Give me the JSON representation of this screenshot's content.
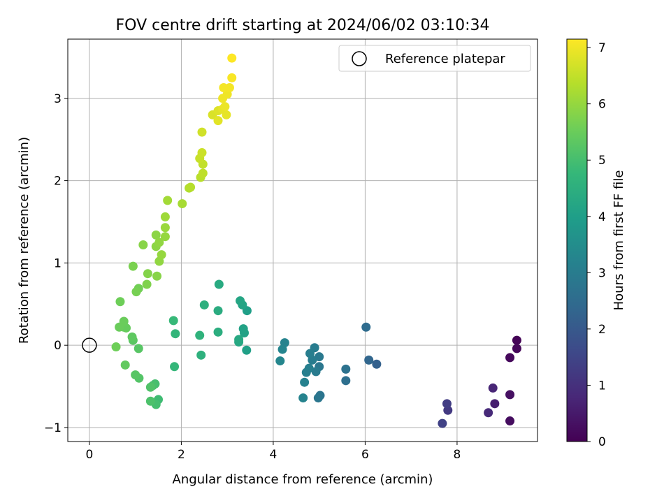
{
  "chart_data": {
    "type": "scatter",
    "title": "FOV centre drift starting at 2024/06/02 03:10:34",
    "xlabel": "Angular distance from reference (arcmin)",
    "ylabel": "Rotation from reference (arcmin)",
    "xlim": [
      -0.47,
      9.75
    ],
    "ylim": [
      -1.17,
      3.72
    ],
    "xticks": [
      0,
      2,
      4,
      6,
      8
    ],
    "yticks": [
      -1,
      0,
      1,
      2,
      3
    ],
    "xtick_labels": [
      "0",
      "2",
      "4",
      "6",
      "8"
    ],
    "ytick_labels": [
      "−1",
      "0",
      "1",
      "2",
      "3"
    ],
    "grid": true,
    "legend": {
      "placement": "upper right",
      "entries": [
        "Reference platepar"
      ]
    },
    "reference_point": {
      "x": 0,
      "y": 0
    },
    "colorbar": {
      "label": "Hours from first FF file",
      "range": [
        0,
        7.15
      ],
      "ticks": [
        0,
        1,
        2,
        3,
        4,
        5,
        6,
        7
      ],
      "tick_labels": [
        "0",
        "1",
        "2",
        "3",
        "4",
        "5",
        "6",
        "7"
      ],
      "colormap": "viridis"
    },
    "points": [
      [
        9.3,
        0.06,
        0.05
      ],
      [
        9.3,
        -0.04,
        0.1
      ],
      [
        9.15,
        -0.15,
        0.15
      ],
      [
        9.15,
        -0.6,
        0.3
      ],
      [
        9.15,
        -0.92,
        0.25
      ],
      [
        8.82,
        -0.71,
        0.6
      ],
      [
        8.78,
        -0.52,
        0.75
      ],
      [
        8.68,
        -0.82,
        0.85
      ],
      [
        7.8,
        -0.79,
        1.2
      ],
      [
        7.78,
        -0.71,
        1.3
      ],
      [
        7.68,
        -0.95,
        1.4
      ],
      [
        6.25,
        -0.23,
        2.2
      ],
      [
        6.08,
        -0.18,
        2.35
      ],
      [
        6.02,
        0.22,
        2.5
      ],
      [
        5.58,
        -0.43,
        2.6
      ],
      [
        5.58,
        -0.29,
        2.7
      ],
      [
        5.02,
        -0.61,
        2.75
      ],
      [
        4.98,
        -0.64,
        2.8
      ],
      [
        5.0,
        -0.26,
        2.85
      ],
      [
        5.0,
        -0.14,
        2.9
      ],
      [
        4.93,
        -0.32,
        2.95
      ],
      [
        4.9,
        -0.03,
        3.0
      ],
      [
        4.85,
        -0.18,
        3.0
      ],
      [
        4.8,
        -0.1,
        3.05
      ],
      [
        4.78,
        -0.28,
        3.1
      ],
      [
        4.72,
        -0.33,
        3.1
      ],
      [
        4.68,
        -0.45,
        3.15
      ],
      [
        4.65,
        -0.64,
        3.2
      ],
      [
        4.25,
        0.03,
        3.2
      ],
      [
        4.2,
        -0.05,
        3.25
      ],
      [
        4.15,
        -0.19,
        3.3
      ],
      [
        3.43,
        0.42,
        4.0
      ],
      [
        3.42,
        -0.06,
        4.05
      ],
      [
        3.37,
        0.15,
        4.1
      ],
      [
        3.35,
        0.2,
        4.1
      ],
      [
        3.33,
        0.49,
        4.15
      ],
      [
        3.28,
        0.54,
        4.2
      ],
      [
        3.25,
        0.04,
        4.25
      ],
      [
        3.25,
        0.07,
        4.3
      ],
      [
        2.82,
        0.74,
        4.35
      ],
      [
        2.8,
        0.42,
        4.4
      ],
      [
        2.8,
        0.16,
        4.45
      ],
      [
        2.5,
        0.49,
        4.5
      ],
      [
        2.43,
        -0.12,
        4.55
      ],
      [
        2.4,
        0.12,
        4.6
      ],
      [
        1.87,
        0.14,
        4.7
      ],
      [
        1.85,
        -0.26,
        4.75
      ],
      [
        1.83,
        0.3,
        4.8
      ],
      [
        1.5,
        -0.66,
        4.9
      ],
      [
        1.45,
        -0.72,
        5.0
      ],
      [
        1.43,
        -0.47,
        5.0
      ],
      [
        1.38,
        -0.49,
        5.05
      ],
      [
        1.33,
        -0.68,
        5.1
      ],
      [
        1.33,
        -0.51,
        5.15
      ],
      [
        1.08,
        -0.4,
        5.2
      ],
      [
        1.07,
        -0.04,
        5.25
      ],
      [
        1.0,
        -0.36,
        5.25
      ],
      [
        0.95,
        0.06,
        5.3
      ],
      [
        0.93,
        0.1,
        5.35
      ],
      [
        0.78,
        -0.24,
        5.4
      ],
      [
        0.8,
        0.21,
        5.45
      ],
      [
        0.75,
        0.22,
        5.45
      ],
      [
        0.75,
        0.29,
        5.5
      ],
      [
        0.65,
        0.22,
        5.5
      ],
      [
        0.67,
        0.53,
        5.55
      ],
      [
        0.58,
        -0.02,
        5.55
      ],
      [
        1.07,
        0.69,
        5.6
      ],
      [
        1.02,
        0.65,
        5.65
      ],
      [
        0.95,
        0.96,
        5.7
      ],
      [
        1.25,
        0.74,
        5.75
      ],
      [
        1.27,
        0.87,
        5.8
      ],
      [
        1.47,
        0.84,
        5.85
      ],
      [
        1.17,
        1.22,
        5.85
      ],
      [
        1.45,
        1.2,
        5.9
      ],
      [
        1.45,
        1.34,
        5.9
      ],
      [
        1.52,
        1.25,
        5.95
      ],
      [
        1.52,
        1.02,
        5.95
      ],
      [
        1.57,
        1.1,
        6.0
      ],
      [
        1.65,
        1.32,
        6.0
      ],
      [
        1.65,
        1.43,
        6.05
      ],
      [
        1.65,
        1.56,
        6.1
      ],
      [
        1.7,
        1.76,
        6.15
      ],
      [
        2.02,
        1.72,
        6.2
      ],
      [
        2.17,
        1.91,
        6.3
      ],
      [
        2.2,
        1.92,
        6.35
      ],
      [
        2.42,
        2.04,
        6.4
      ],
      [
        2.47,
        2.09,
        6.45
      ],
      [
        2.47,
        2.2,
        6.5
      ],
      [
        2.4,
        2.27,
        6.55
      ],
      [
        2.45,
        2.34,
        6.6
      ],
      [
        2.45,
        2.59,
        6.65
      ],
      [
        2.68,
        2.8,
        6.75
      ],
      [
        2.8,
        2.85,
        6.8
      ],
      [
        2.8,
        2.73,
        6.85
      ],
      [
        2.9,
        2.87,
        6.9
      ],
      [
        2.98,
        2.8,
        6.9
      ],
      [
        2.95,
        2.9,
        6.95
      ],
      [
        2.9,
        3.0,
        7.0
      ],
      [
        3.0,
        3.05,
        7.0
      ],
      [
        3.05,
        3.13,
        7.05
      ],
      [
        2.92,
        3.13,
        7.05
      ],
      [
        3.1,
        3.25,
        7.1
      ],
      [
        3.1,
        3.49,
        7.15
      ]
    ]
  }
}
